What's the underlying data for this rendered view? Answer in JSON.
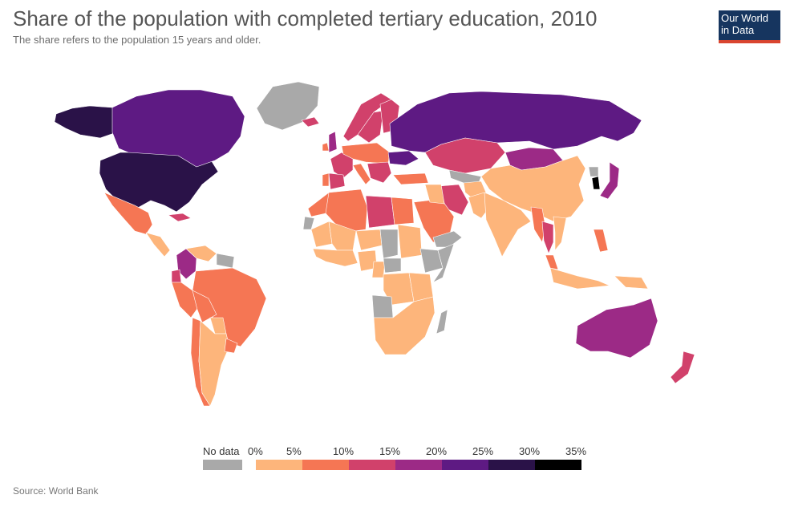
{
  "header": {
    "title": "Share of the population with completed tertiary education, 2010",
    "subtitle": "The share refers to the population 15 years and older."
  },
  "logo": {
    "line1": "Our World",
    "line2": "in Data",
    "bg": "#16355f",
    "accent": "#d9452f"
  },
  "legend": {
    "no_data_label": "No data",
    "no_data_color": "#a9a9a9",
    "ticks": [
      "0%",
      "5%",
      "10%",
      "15%",
      "20%",
      "25%",
      "30%",
      "35%"
    ],
    "bins": [
      {
        "from": 0,
        "to": 5,
        "color": "#fdb57b"
      },
      {
        "from": 5,
        "to": 10,
        "color": "#f57654"
      },
      {
        "from": 10,
        "to": 15,
        "color": "#d1416b"
      },
      {
        "from": 15,
        "to": 20,
        "color": "#9c2a86"
      },
      {
        "from": 20,
        "to": 25,
        "color": "#5e1a83"
      },
      {
        "from": 25,
        "to": 30,
        "color": "#2a1248"
      },
      {
        "from": 30,
        "to": 35,
        "color": "#000000"
      }
    ]
  },
  "map": {
    "year": "2010",
    "regions": [
      {
        "name": "United States",
        "color": "#2a1248"
      },
      {
        "name": "Alaska",
        "color": "#2a1248"
      },
      {
        "name": "Canada",
        "color": "#5e1a83"
      },
      {
        "name": "Greenland",
        "color": "#a9a9a9"
      },
      {
        "name": "Mexico",
        "color": "#f57654"
      },
      {
        "name": "Central America",
        "color": "#fdb57b"
      },
      {
        "name": "Cuba",
        "color": "#d1416b"
      },
      {
        "name": "Colombia",
        "color": "#9c2a86"
      },
      {
        "name": "Venezuela",
        "color": "#fdb57b"
      },
      {
        "name": "Guianas",
        "color": "#a9a9a9"
      },
      {
        "name": "Ecuador",
        "color": "#d1416b"
      },
      {
        "name": "Peru",
        "color": "#f57654"
      },
      {
        "name": "Brazil",
        "color": "#f57654"
      },
      {
        "name": "Bolivia",
        "color": "#f57654"
      },
      {
        "name": "Paraguay",
        "color": "#fdb57b"
      },
      {
        "name": "Chile",
        "color": "#f57654"
      },
      {
        "name": "Argentina",
        "color": "#fdb57b"
      },
      {
        "name": "Uruguay",
        "color": "#f57654"
      },
      {
        "name": "Iceland",
        "color": "#d1416b"
      },
      {
        "name": "United Kingdom",
        "color": "#9c2a86"
      },
      {
        "name": "Ireland",
        "color": "#f57654"
      },
      {
        "name": "Norway",
        "color": "#d1416b"
      },
      {
        "name": "Sweden",
        "color": "#d1416b"
      },
      {
        "name": "Finland",
        "color": "#d1416b"
      },
      {
        "name": "France",
        "color": "#d1416b"
      },
      {
        "name": "Spain",
        "color": "#d1416b"
      },
      {
        "name": "Portugal",
        "color": "#f57654"
      },
      {
        "name": "Central Europe",
        "color": "#f57654"
      },
      {
        "name": "Italy",
        "color": "#f57654"
      },
      {
        "name": "Balkans",
        "color": "#d1416b"
      },
      {
        "name": "Ukraine",
        "color": "#5e1a83"
      },
      {
        "name": "Russia",
        "color": "#5e1a83"
      },
      {
        "name": "Kazakhstan",
        "color": "#d1416b"
      },
      {
        "name": "Mongolia",
        "color": "#9c2a86"
      },
      {
        "name": "China",
        "color": "#fdb57b"
      },
      {
        "name": "Central Asia",
        "color": "#a9a9a9"
      },
      {
        "name": "Turkey",
        "color": "#f57654"
      },
      {
        "name": "Iran",
        "color": "#d1416b"
      },
      {
        "name": "Saudi Arabia",
        "color": "#f57654"
      },
      {
        "name": "Yemen",
        "color": "#a9a9a9"
      },
      {
        "name": "Iraq",
        "color": "#fdb57b"
      },
      {
        "name": "Afghanistan",
        "color": "#fdb57b"
      },
      {
        "name": "Pakistan",
        "color": "#fdb57b"
      },
      {
        "name": "India",
        "color": "#fdb57b"
      },
      {
        "name": "Myanmar",
        "color": "#f57654"
      },
      {
        "name": "Thailand",
        "color": "#d1416b"
      },
      {
        "name": "Vietnam",
        "color": "#fdb57b"
      },
      {
        "name": "Malaysia",
        "color": "#f57654"
      },
      {
        "name": "Indonesia",
        "color": "#fdb57b"
      },
      {
        "name": "Philippines",
        "color": "#f57654"
      },
      {
        "name": "Japan",
        "color": "#9c2a86"
      },
      {
        "name": "South Korea",
        "color": "#000000"
      },
      {
        "name": "North Korea",
        "color": "#a9a9a9"
      },
      {
        "name": "Papua New Guinea",
        "color": "#fdb57b"
      },
      {
        "name": "Australia",
        "color": "#9c2a86"
      },
      {
        "name": "New Zealand",
        "color": "#d1416b"
      },
      {
        "name": "Morocco",
        "color": "#f57654"
      },
      {
        "name": "Algeria",
        "color": "#f57654"
      },
      {
        "name": "Libya",
        "color": "#d1416b"
      },
      {
        "name": "Egypt",
        "color": "#f57654"
      },
      {
        "name": "Western Sahara",
        "color": "#a9a9a9"
      },
      {
        "name": "Mauritania",
        "color": "#fdb57b"
      },
      {
        "name": "Mali",
        "color": "#fdb57b"
      },
      {
        "name": "Niger",
        "color": "#fdb57b"
      },
      {
        "name": "Chad",
        "color": "#a9a9a9"
      },
      {
        "name": "Sudan",
        "color": "#fdb57b"
      },
      {
        "name": "Ethiopia",
        "color": "#a9a9a9"
      },
      {
        "name": "Somalia",
        "color": "#a9a9a9"
      },
      {
        "name": "West Africa",
        "color": "#fdb57b"
      },
      {
        "name": "Nigeria",
        "color": "#fdb57b"
      },
      {
        "name": "Cameroon",
        "color": "#fdb57b"
      },
      {
        "name": "Central African Republic",
        "color": "#a9a9a9"
      },
      {
        "name": "DR Congo",
        "color": "#fdb57b"
      },
      {
        "name": "East Africa",
        "color": "#fdb57b"
      },
      {
        "name": "Angola",
        "color": "#a9a9a9"
      },
      {
        "name": "Southern Africa",
        "color": "#fdb57b"
      },
      {
        "name": "Madagascar",
        "color": "#a9a9a9"
      }
    ]
  },
  "footer": {
    "source": "Source: World Bank"
  }
}
